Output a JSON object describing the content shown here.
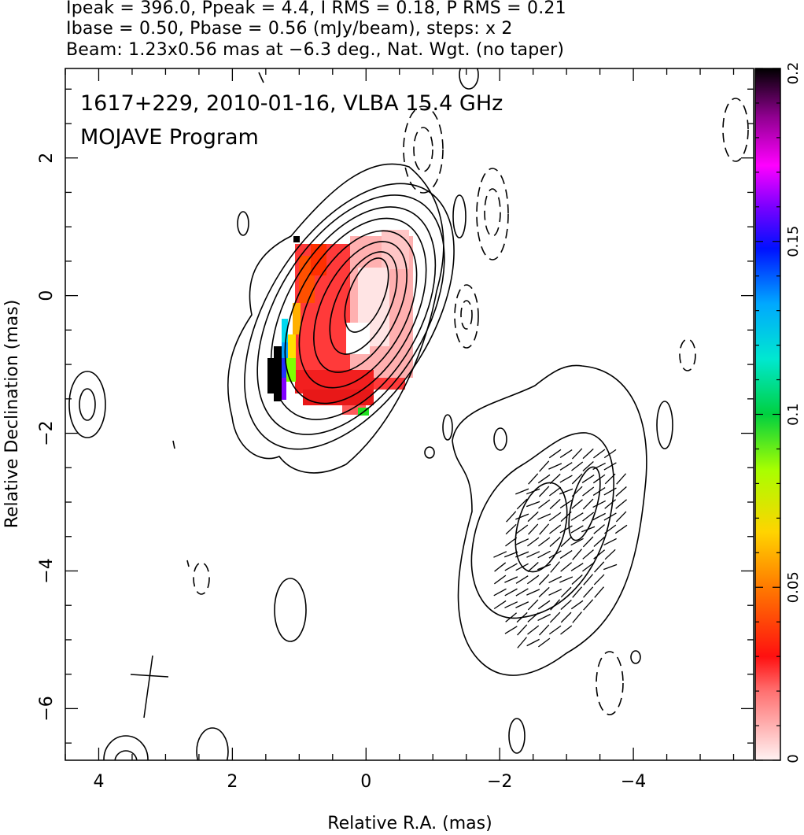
{
  "header": {
    "line1": "Ipeak = 396.0, Ppeak = 4.4, I RMS = 0.18, P RMS = 0.21",
    "line2": "Ibase = 0.50, Pbase = 0.56 (mJy/beam), steps: x 2",
    "line3": "Beam: 1.23x0.56 mas at −6.3 deg., Nat. Wgt. (no taper)"
  },
  "chart_data": {
    "type": "heatmap",
    "annotation_line1": "1617+229, 2010-01-16, VLBA 15.4 GHz",
    "annotation_line2": "MOJAVE Program",
    "xlabel": "Relative R.A. (mas)",
    "ylabel": "Relative Declination (mas)",
    "xlim": [
      4.5,
      -5.8
    ],
    "ylim": [
      -6.75,
      3.3
    ],
    "x_ticks": [
      {
        "value": 4,
        "label": "4"
      },
      {
        "value": 2,
        "label": "2"
      },
      {
        "value": 0,
        "label": "0"
      },
      {
        "value": -2,
        "label": "−2"
      },
      {
        "value": -4,
        "label": "−4"
      }
    ],
    "y_ticks": [
      {
        "value": 2,
        "label": "2"
      },
      {
        "value": 0,
        "label": "0"
      },
      {
        "value": -2,
        "label": "−2"
      },
      {
        "value": -4,
        "label": "−4"
      },
      {
        "value": -6,
        "label": "−6"
      }
    ],
    "colorbar": {
      "range": [
        0,
        0.2
      ],
      "ticks": [
        {
          "value": 0,
          "label": "0"
        },
        {
          "value": 0.05,
          "label": "0.05"
        },
        {
          "value": 0.1,
          "label": "0.1"
        },
        {
          "value": 0.15,
          "label": "0.15"
        },
        {
          "value": 0.2,
          "label": "0.2"
        }
      ]
    },
    "core": {
      "x": -0.15,
      "y": -0.25
    },
    "jet_component": {
      "x": -2.9,
      "y": -3.6
    },
    "beam": {
      "major_mas": 1.23,
      "minor_mas": 0.56,
      "pa_deg": -6.3
    },
    "colors": {
      "contour": "#000000",
      "cmap_low": "#ffe8e8",
      "cmap_high": "#000000"
    }
  }
}
